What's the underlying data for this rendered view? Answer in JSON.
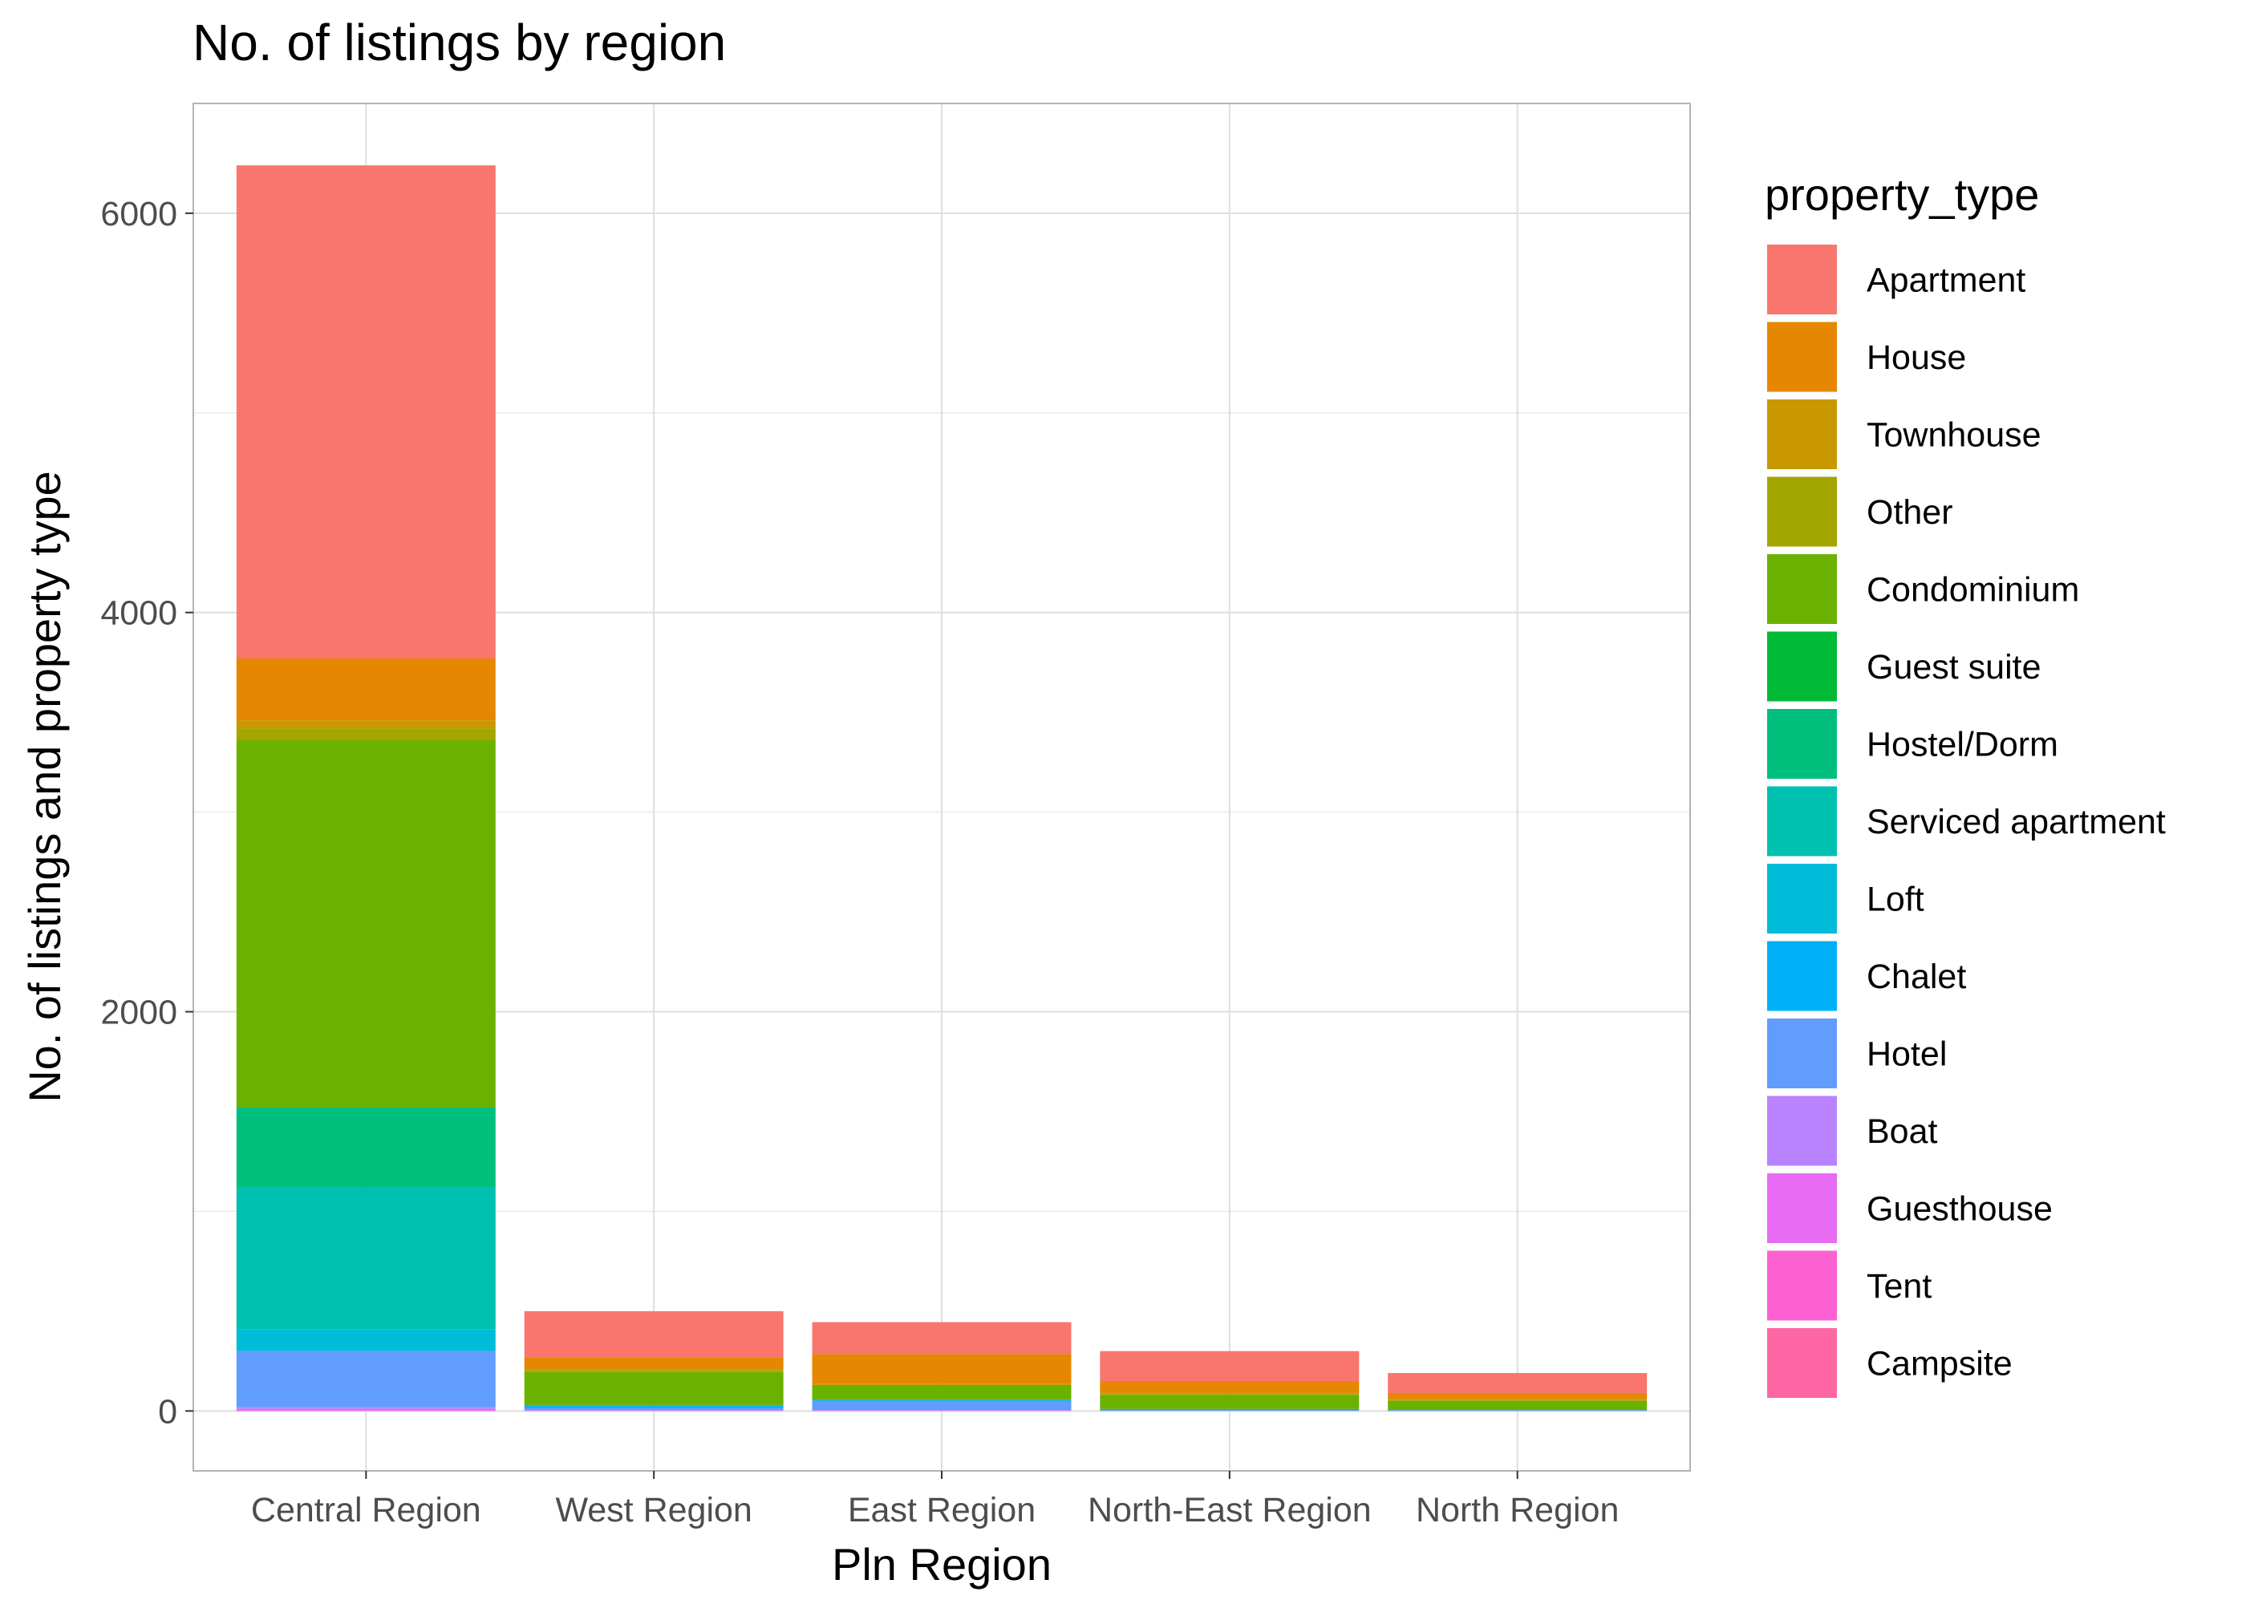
{
  "chart_data": {
    "type": "bar",
    "stacked": true,
    "title": "No. of listings by region",
    "xlabel": "Pln Region",
    "ylabel": "No. of listings and property type",
    "ylim": [
      -300,
      6550
    ],
    "yticks": [
      0,
      2000,
      4000,
      6000
    ],
    "grid": true,
    "legend_title": "property_type",
    "legend_position": "right",
    "categories": [
      "Central Region",
      "West Region",
      "East Region",
      "North-East Region",
      "North Region"
    ],
    "series": [
      {
        "name": "Apartment",
        "color": "#F8766D",
        "values": [
          2470,
          230,
          160,
          150,
          100
        ]
      },
      {
        "name": "House",
        "color": "#E58700",
        "values": [
          310,
          60,
          150,
          60,
          30
        ]
      },
      {
        "name": "Townhouse",
        "color": "#C99800",
        "values": [
          40,
          5,
          5,
          5,
          5
        ]
      },
      {
        "name": "Other",
        "color": "#A3A500",
        "values": [
          60,
          10,
          0,
          5,
          5
        ]
      },
      {
        "name": "Condominium",
        "color": "#6BB100",
        "values": [
          1840,
          165,
          75,
          70,
          45
        ]
      },
      {
        "name": "Guest suite",
        "color": "#00BA38",
        "values": [
          0,
          0,
          0,
          0,
          0
        ]
      },
      {
        "name": "Hostel/Dorm",
        "color": "#00BF7D",
        "values": [
          400,
          0,
          0,
          0,
          0
        ]
      },
      {
        "name": "Serviced apartment",
        "color": "#00C0AF",
        "values": [
          710,
          0,
          0,
          0,
          0
        ]
      },
      {
        "name": "Loft",
        "color": "#00BCD8",
        "values": [
          110,
          5,
          0,
          0,
          0
        ]
      },
      {
        "name": "Chalet",
        "color": "#00B0F6",
        "values": [
          0,
          10,
          5,
          5,
          0
        ]
      },
      {
        "name": "Hotel",
        "color": "#619CFF",
        "values": [
          280,
          10,
          45,
          5,
          5
        ]
      },
      {
        "name": "Boat",
        "color": "#B983FF",
        "values": [
          10,
          5,
          5,
          0,
          0
        ]
      },
      {
        "name": "Guesthouse",
        "color": "#E76BF3",
        "values": [
          10,
          0,
          0,
          0,
          0
        ]
      },
      {
        "name": "Tent",
        "color": "#FD61D1",
        "values": [
          0,
          0,
          0,
          0,
          0
        ]
      },
      {
        "name": "Campsite",
        "color": "#FF67A4",
        "values": [
          0,
          0,
          0,
          0,
          0
        ]
      }
    ]
  }
}
